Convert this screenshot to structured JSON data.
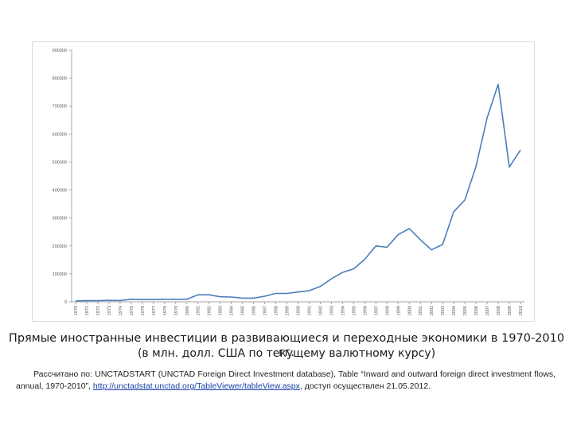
{
  "chart_data": {
    "type": "line",
    "title": "",
    "xlabel": "",
    "ylabel": "",
    "ylim": [
      0,
      900000
    ],
    "y_ticks": [
      "900000",
      "800000",
      "700000",
      "600000",
      "500000",
      "400000",
      "300000",
      "200000",
      "100000",
      "0"
    ],
    "categories": [
      "1970",
      "1971",
      "1972",
      "1973",
      "1974",
      "1975",
      "1976",
      "1977",
      "1978",
      "1979",
      "1980",
      "1981",
      "1982",
      "1983",
      "1984",
      "1985",
      "1986",
      "1987",
      "1988",
      "1989",
      "1990",
      "1991",
      "1992",
      "1993",
      "1994",
      "1995",
      "1996",
      "1997",
      "1998",
      "1999",
      "2000",
      "2001",
      "2002",
      "2003",
      "2004",
      "2005",
      "2006",
      "2007",
      "2008",
      "2009",
      "2010"
    ],
    "series": [
      {
        "name": "",
        "color": "#4a7ebb",
        "values": [
          3000,
          4000,
          4000,
          5000,
          4500,
          9000,
          8000,
          8000,
          9000,
          9000,
          9000,
          25000,
          25000,
          18000,
          17000,
          13000,
          13000,
          20000,
          30000,
          30000,
          35000,
          40000,
          55000,
          82000,
          105000,
          118000,
          152000,
          200000,
          195000,
          240000,
          262000,
          222000,
          186000,
          205000,
          322000,
          364000,
          484000,
          658000,
          778000,
          482000,
          543000
        ]
      }
    ],
    "grid": false,
    "legend": "none"
  },
  "caption": {
    "title": "Прямые иностранные инвестиции в развивающиеся и переходные экономики в 1970-2010 гг.",
    "subtitle": "(в млн. долл. США по текущему валютному курсу)"
  },
  "source": {
    "text_before": "Рассчитано по: UNCTADSTART (UNCTAD Foreign Direct Investment database), Table “Inward and outward foreign direct investment flows, annual, 1970-2010”, ",
    "link": "http://unctadstat.unctad.org/TableViewer/tableView.aspx",
    "text_after": ", доступ осуществлен 21.05.2012."
  }
}
